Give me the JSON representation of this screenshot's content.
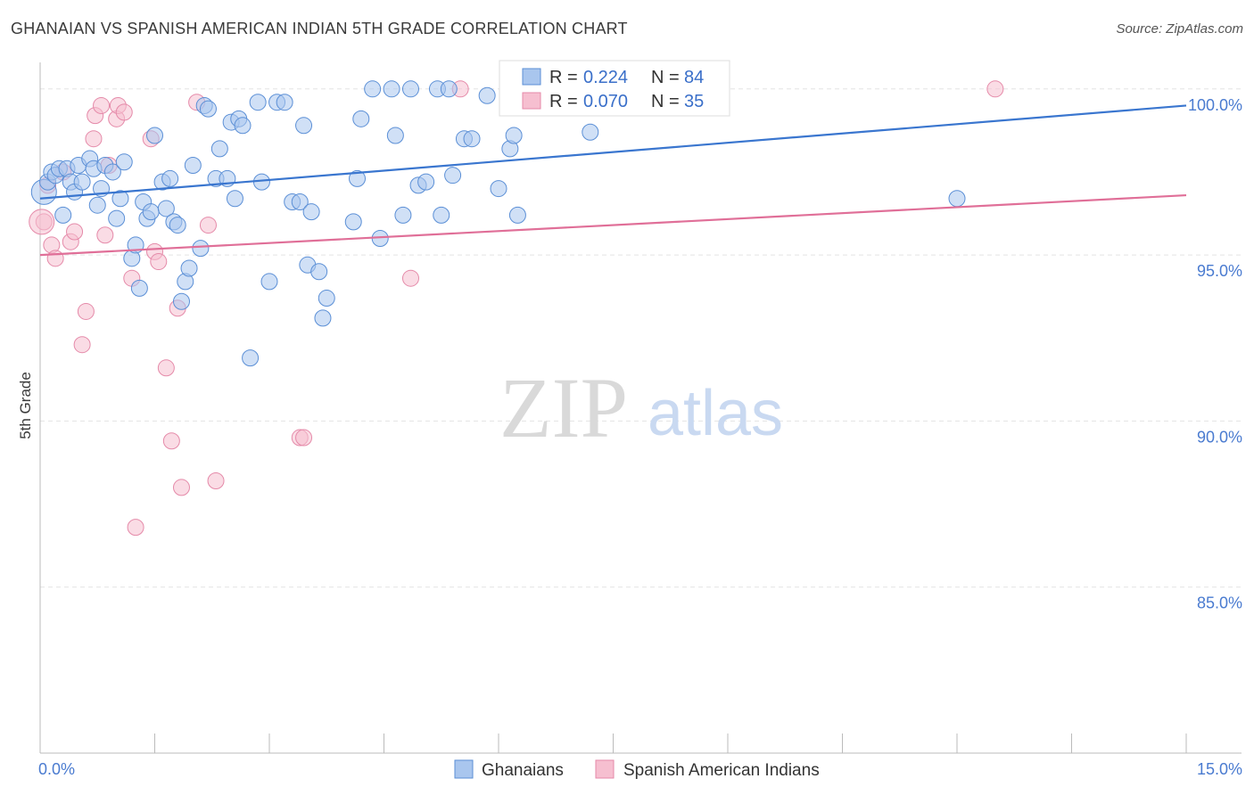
{
  "title": "GHANAIAN VS SPANISH AMERICAN INDIAN 5TH GRADE CORRELATION CHART",
  "source": "Source: ZipAtlas.com",
  "watermark": {
    "zip": "ZIP",
    "atlas": "atlas"
  },
  "colors": {
    "blue_fill": "#a9c6ee",
    "blue_stroke": "#5b8fd6",
    "blue_line": "#3a76cf",
    "pink_fill": "#f6bfd0",
    "pink_stroke": "#e58aa9",
    "pink_line": "#e06f98",
    "grid": "#e3e3e3",
    "tick_text": "#4a7bd0"
  },
  "legend": {
    "rows": [
      {
        "r_label": "R = ",
        "r_value": "0.224",
        "n_label": "N = ",
        "n_value": "84",
        "series": "blue"
      },
      {
        "r_label": "R = ",
        "r_value": "0.070",
        "n_label": "N = ",
        "n_value": "35",
        "series": "pink"
      }
    ]
  },
  "chart_data": {
    "type": "scatter",
    "title": "GHANAIAN VS SPANISH AMERICAN INDIAN 5TH GRADE CORRELATION CHART",
    "xlabel": "",
    "ylabel": "5th Grade",
    "xlim": [
      0.0,
      15.0
    ],
    "ylim": [
      80.0,
      100.8
    ],
    "x_tick_labels": [
      {
        "value": 0.0,
        "label": "0.0%"
      },
      {
        "value": 15.0,
        "label": "15.0%"
      }
    ],
    "y_tick_labels": [
      {
        "value": 100.0,
        "label": "100.0%"
      },
      {
        "value": 95.0,
        "label": "95.0%"
      },
      {
        "value": 90.0,
        "label": "90.0%"
      },
      {
        "value": 85.0,
        "label": "85.0%"
      }
    ],
    "grid": "horizontal dashed",
    "legend_position": "top-center",
    "series": [
      {
        "name": "Ghanaians",
        "color": "#a9c6ee",
        "trend": {
          "x": [
            0.0,
            15.0
          ],
          "y": [
            96.7,
            99.5
          ]
        },
        "points": [
          [
            0.05,
            96.9
          ],
          [
            0.1,
            97.2
          ],
          [
            0.15,
            97.5
          ],
          [
            0.2,
            97.4
          ],
          [
            0.25,
            97.6
          ],
          [
            0.3,
            96.2
          ],
          [
            0.35,
            97.6
          ],
          [
            0.4,
            97.2
          ],
          [
            0.45,
            96.9
          ],
          [
            0.5,
            97.7
          ],
          [
            0.55,
            97.2
          ],
          [
            0.65,
            97.9
          ],
          [
            0.7,
            97.6
          ],
          [
            0.75,
            96.5
          ],
          [
            0.8,
            97.0
          ],
          [
            0.85,
            97.7
          ],
          [
            0.95,
            97.5
          ],
          [
            1.0,
            96.1
          ],
          [
            1.05,
            96.7
          ],
          [
            1.1,
            97.8
          ],
          [
            1.2,
            94.9
          ],
          [
            1.25,
            95.3
          ],
          [
            1.3,
            94.0
          ],
          [
            1.35,
            96.6
          ],
          [
            1.4,
            96.1
          ],
          [
            1.45,
            96.3
          ],
          [
            1.5,
            98.6
          ],
          [
            1.6,
            97.2
          ],
          [
            1.65,
            96.4
          ],
          [
            1.7,
            97.3
          ],
          [
            1.75,
            96.0
          ],
          [
            1.8,
            95.9
          ],
          [
            1.85,
            93.6
          ],
          [
            1.9,
            94.2
          ],
          [
            1.95,
            94.6
          ],
          [
            2.0,
            97.7
          ],
          [
            2.1,
            95.2
          ],
          [
            2.15,
            99.5
          ],
          [
            2.2,
            99.4
          ],
          [
            2.3,
            97.3
          ],
          [
            2.35,
            98.2
          ],
          [
            2.45,
            97.3
          ],
          [
            2.5,
            99.0
          ],
          [
            2.55,
            96.7
          ],
          [
            2.6,
            99.1
          ],
          [
            2.65,
            98.9
          ],
          [
            2.75,
            91.9
          ],
          [
            2.85,
            99.6
          ],
          [
            2.9,
            97.2
          ],
          [
            3.0,
            94.2
          ],
          [
            3.1,
            99.6
          ],
          [
            3.2,
            99.6
          ],
          [
            3.3,
            96.6
          ],
          [
            3.4,
            96.6
          ],
          [
            3.45,
            98.9
          ],
          [
            3.5,
            94.7
          ],
          [
            3.55,
            96.3
          ],
          [
            3.65,
            94.5
          ],
          [
            3.7,
            93.1
          ],
          [
            3.75,
            93.7
          ],
          [
            4.1,
            96.0
          ],
          [
            4.15,
            97.3
          ],
          [
            4.2,
            99.1
          ],
          [
            4.35,
            100.0
          ],
          [
            4.45,
            95.5
          ],
          [
            4.6,
            100.0
          ],
          [
            4.65,
            98.6
          ],
          [
            4.75,
            96.2
          ],
          [
            4.85,
            100.0
          ],
          [
            4.95,
            97.1
          ],
          [
            5.05,
            97.2
          ],
          [
            5.2,
            100.0
          ],
          [
            5.25,
            96.2
          ],
          [
            5.35,
            100.0
          ],
          [
            5.4,
            97.4
          ],
          [
            5.55,
            98.5
          ],
          [
            5.65,
            98.5
          ],
          [
            5.85,
            99.8
          ],
          [
            6.0,
            97.0
          ],
          [
            6.15,
            98.2
          ],
          [
            6.2,
            98.6
          ],
          [
            6.25,
            96.2
          ],
          [
            7.2,
            98.7
          ],
          [
            12.0,
            96.7
          ]
        ]
      },
      {
        "name": "Spanish American Indians",
        "color": "#f6bfd0",
        "trend": {
          "x": [
            0.0,
            15.0
          ],
          "y": [
            95.0,
            96.8
          ]
        },
        "points": [
          [
            0.05,
            96.0
          ],
          [
            0.1,
            97.1
          ],
          [
            0.15,
            95.3
          ],
          [
            0.2,
            94.9
          ],
          [
            0.3,
            97.5
          ],
          [
            0.4,
            95.4
          ],
          [
            0.45,
            95.7
          ],
          [
            0.55,
            92.3
          ],
          [
            0.6,
            93.3
          ],
          [
            0.7,
            98.5
          ],
          [
            0.72,
            99.2
          ],
          [
            0.8,
            99.5
          ],
          [
            0.85,
            95.6
          ],
          [
            0.9,
            97.7
          ],
          [
            1.0,
            99.1
          ],
          [
            1.02,
            99.5
          ],
          [
            1.1,
            99.3
          ],
          [
            1.2,
            94.3
          ],
          [
            1.25,
            86.8
          ],
          [
            1.45,
            98.5
          ],
          [
            1.5,
            95.1
          ],
          [
            1.55,
            94.8
          ],
          [
            1.65,
            91.6
          ],
          [
            1.72,
            89.4
          ],
          [
            1.8,
            93.4
          ],
          [
            1.85,
            88.0
          ],
          [
            2.05,
            99.6
          ],
          [
            2.2,
            95.9
          ],
          [
            2.3,
            88.2
          ],
          [
            3.4,
            89.5
          ],
          [
            3.45,
            89.5
          ],
          [
            4.85,
            94.3
          ],
          [
            5.5,
            100.0
          ],
          [
            12.5,
            100.0
          ],
          [
            0.02,
            96.0
          ]
        ]
      }
    ]
  },
  "bottom_legend": [
    {
      "label": "Ghanaians",
      "series": "blue"
    },
    {
      "label": "Spanish American Indians",
      "series": "pink"
    }
  ]
}
